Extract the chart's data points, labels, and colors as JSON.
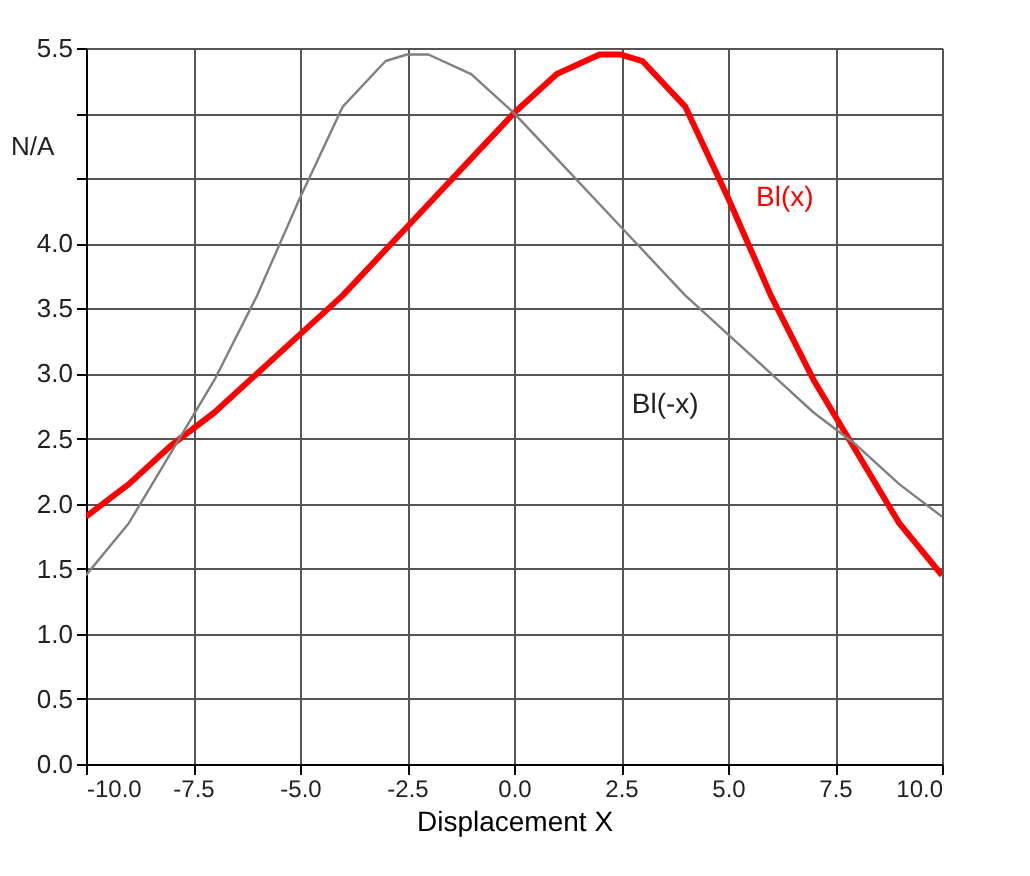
{
  "chart_data": {
    "type": "line",
    "xlabel": "Displacement  X",
    "ylabel": "N/A",
    "x": [
      -10,
      -9,
      -8,
      -7,
      -6,
      -5,
      -4,
      -3,
      -2,
      -1,
      0,
      1,
      2,
      2.5,
      3,
      4,
      5,
      6,
      7,
      8,
      9,
      10
    ],
    "series": [
      {
        "name": "Bl(x)",
        "color": "#ff0000",
        "values": [
          1.9,
          2.15,
          2.45,
          2.7,
          3.0,
          3.3,
          3.6,
          3.95,
          4.3,
          4.65,
          5.0,
          5.3,
          5.45,
          5.45,
          5.4,
          5.05,
          4.35,
          3.6,
          2.95,
          2.4,
          1.85,
          1.45
        ]
      },
      {
        "name": "Bl(-x)",
        "color": "#808080",
        "x": [
          -10,
          -9,
          -8,
          -7,
          -6,
          -5,
          -4,
          -3,
          -2.5,
          -2,
          -1,
          0,
          1,
          2,
          3,
          4,
          5,
          6,
          7,
          8,
          9,
          10
        ],
        "values": [
          1.45,
          1.85,
          2.4,
          2.95,
          3.6,
          4.35,
          5.05,
          5.4,
          5.45,
          5.45,
          5.3,
          5.0,
          4.65,
          4.3,
          3.95,
          3.6,
          3.3,
          3.0,
          2.7,
          2.45,
          2.15,
          1.9
        ]
      }
    ],
    "xlim": [
      -10,
      10
    ],
    "xticks": [
      {
        "value": -10,
        "label": "-10.0"
      },
      {
        "value": -7.5,
        "label": "-7.5"
      },
      {
        "value": -5,
        "label": "-5.0"
      },
      {
        "value": -2.5,
        "label": "-2.5"
      },
      {
        "value": 0,
        "label": "0.0"
      },
      {
        "value": 2.5,
        "label": "2.5"
      },
      {
        "value": 5,
        "label": "5.0"
      },
      {
        "value": 7.5,
        "label": "7.5"
      },
      {
        "value": 10,
        "label": "10.0"
      }
    ],
    "ylim": [
      0,
      5.5
    ],
    "yticks": [
      {
        "value": 0,
        "label": "0.0"
      },
      {
        "value": 0.5,
        "label": "0.5"
      },
      {
        "value": 1,
        "label": "1.0"
      },
      {
        "value": 1.5,
        "label": "1.5"
      },
      {
        "value": 2,
        "label": "2.0"
      },
      {
        "value": 2.5,
        "label": "2.5"
      },
      {
        "value": 3,
        "label": "3.0"
      },
      {
        "value": 3.5,
        "label": "3.5"
      },
      {
        "value": 4,
        "label": "4.0"
      },
      {
        "value": 4.5,
        "label": null
      },
      {
        "value": 5,
        "label": null
      },
      {
        "value": 5.5,
        "label": "5.5"
      }
    ],
    "grid": true,
    "marker": "none",
    "line_style": "solid"
  }
}
